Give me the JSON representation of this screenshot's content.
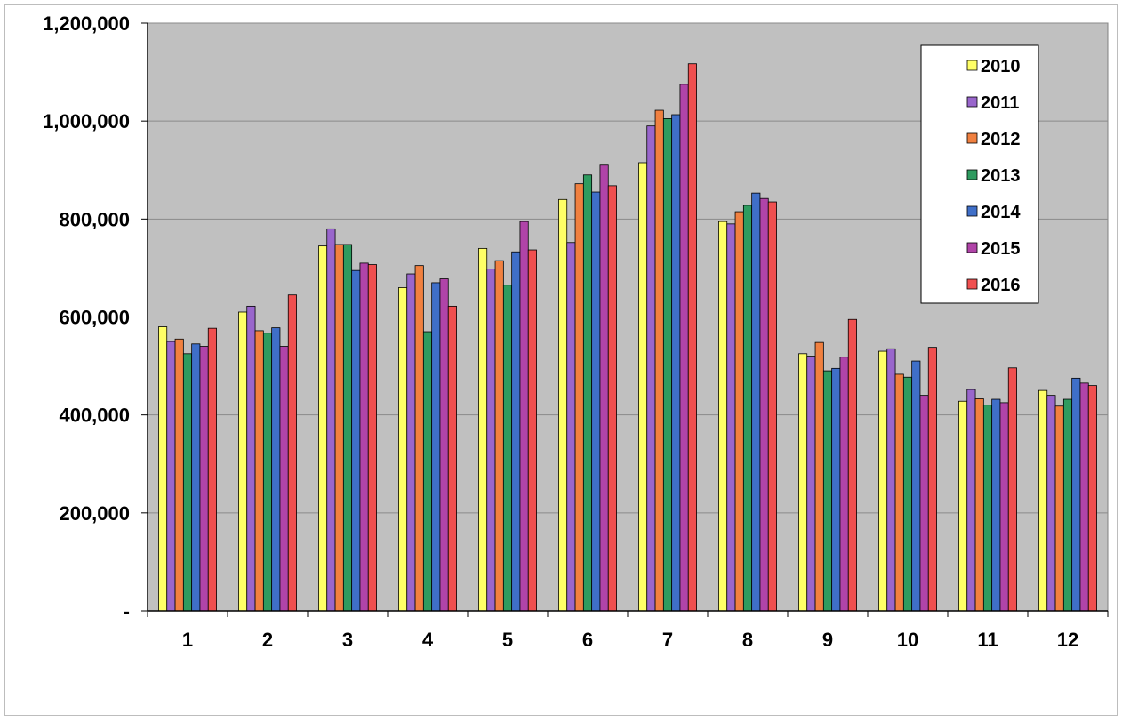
{
  "chart_data": {
    "type": "bar",
    "categories": [
      "1",
      "2",
      "3",
      "4",
      "5",
      "6",
      "7",
      "8",
      "9",
      "10",
      "11",
      "12"
    ],
    "series": [
      {
        "name": "2010",
        "color": "#ffff66",
        "values": [
          580000,
          610000,
          745000,
          660000,
          740000,
          840000,
          915000,
          795000,
          525000,
          530000,
          428000,
          450000
        ]
      },
      {
        "name": "2011",
        "color": "#9966cc",
        "values": [
          550000,
          622000,
          780000,
          688000,
          698000,
          752000,
          990000,
          790000,
          520000,
          535000,
          452000,
          440000
        ]
      },
      {
        "name": "2012",
        "color": "#f08040",
        "values": [
          555000,
          572000,
          748000,
          705000,
          715000,
          872000,
          1022000,
          815000,
          548000,
          483000,
          433000,
          418000
        ]
      },
      {
        "name": "2013",
        "color": "#2e9b5f",
        "values": [
          525000,
          567000,
          748000,
          570000,
          665000,
          890000,
          1005000,
          828000,
          490000,
          477000,
          420000,
          432000
        ]
      },
      {
        "name": "2014",
        "color": "#3f6fc8",
        "values": [
          545000,
          578000,
          695000,
          670000,
          733000,
          855000,
          1013000,
          853000,
          495000,
          510000,
          432000,
          475000
        ]
      },
      {
        "name": "2015",
        "color": "#b044a8",
        "values": [
          540000,
          540000,
          710000,
          678000,
          795000,
          910000,
          1075000,
          842000,
          518000,
          440000,
          425000,
          465000
        ]
      },
      {
        "name": "2016",
        "color": "#f05050",
        "values": [
          577000,
          645000,
          707000,
          622000,
          737000,
          868000,
          1117000,
          835000,
          595000,
          538000,
          496000,
          460000
        ]
      }
    ],
    "ylim": [
      0,
      1200000
    ],
    "y_ticks": [
      0,
      200000,
      400000,
      600000,
      800000,
      1000000,
      1200000
    ],
    "y_tick_labels": [
      "-",
      "200,000",
      "400,000",
      "600,000",
      "800,000",
      "1,000,000",
      "1,200,000"
    ],
    "grid": true,
    "legend_position": "top-right",
    "plot_background": "#c0c0c0",
    "title": "",
    "xlabel": "",
    "ylabel": ""
  }
}
